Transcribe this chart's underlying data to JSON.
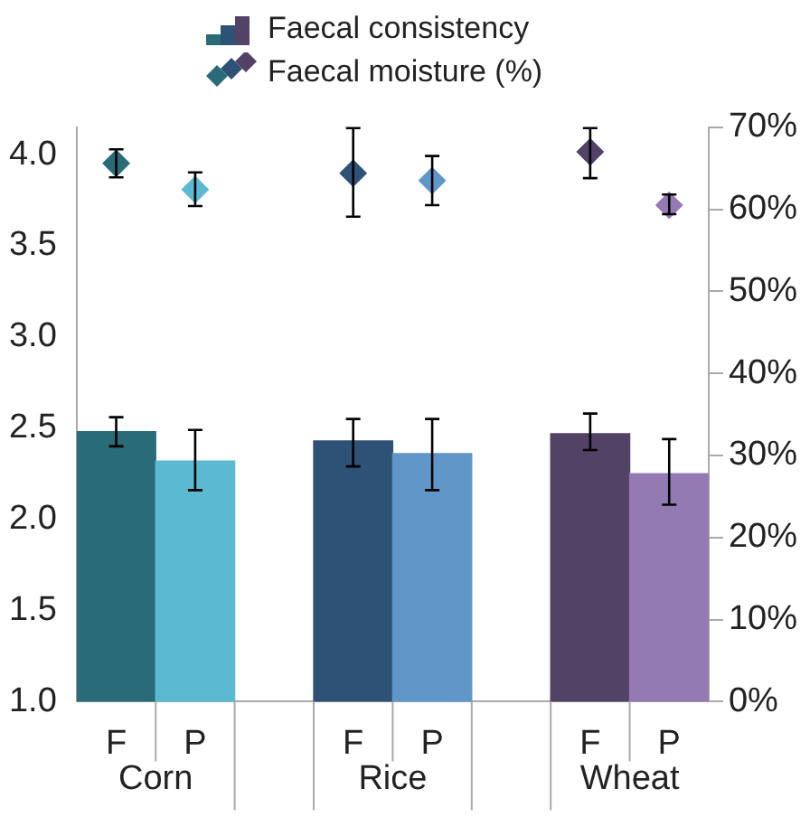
{
  "chart_data": {
    "type": "bar",
    "legend": "top",
    "marker": "diamond",
    "categories": [
      "F",
      "P",
      null,
      "F",
      "P",
      null,
      "F",
      "P"
    ],
    "series": [
      {
        "name": "Faecal consistency",
        "colors": [
          "#2a6b78",
          "#5bb9d1",
          null,
          "#2e5176",
          "#6096c8",
          null,
          "#524266",
          "#937ab3"
        ],
        "values": [
          2.48,
          2.32,
          null,
          2.43,
          2.36,
          null,
          2.47,
          2.25
        ],
        "errors": [
          [
            2.4,
            2.56
          ],
          [
            2.16,
            2.49
          ],
          null,
          [
            2.29,
            2.55
          ],
          [
            2.16,
            2.55
          ],
          null,
          [
            2.38,
            2.58
          ],
          [
            2.08,
            2.44
          ]
        ]
      },
      {
        "name": "Faecal moisture (%)",
        "type": "scatter",
        "axis": "y2",
        "colors": [
          "#2a6b78",
          "#5bb9d1",
          null,
          "#2e5176",
          "#6096c8",
          null,
          "#524266",
          "#937ab3"
        ],
        "values": [
          65.6,
          62.4,
          null,
          64.4,
          63.5,
          null,
          67,
          60.5
        ],
        "errors": [
          [
            63.9,
            67.3
          ],
          [
            60.4,
            64.5
          ],
          null,
          [
            59.1,
            69.9
          ],
          [
            60.5,
            66.5
          ],
          null,
          [
            63.8,
            69.9
          ],
          [
            59.4,
            61.8
          ]
        ]
      }
    ],
    "ylim": [
      1,
      4.15
    ],
    "yticks": [
      {
        "value": 1,
        "label": "1.0"
      },
      {
        "value": 1.5,
        "label": "1.5"
      },
      {
        "value": 2,
        "label": "2.0"
      },
      {
        "value": 2.5,
        "label": "2.5"
      },
      {
        "value": 3,
        "label": "3.0"
      },
      {
        "value": 3.5,
        "label": "3.5"
      },
      {
        "value": 4,
        "label": "4.0"
      }
    ],
    "y2lim": [
      0,
      70
    ],
    "y2ticks": [
      {
        "value": 0,
        "label": "0%"
      },
      {
        "value": 10,
        "label": "10%"
      },
      {
        "value": 20,
        "label": "20%"
      },
      {
        "value": 30,
        "label": "30%"
      },
      {
        "value": 40,
        "label": "40%"
      },
      {
        "value": 50,
        "label": "50%"
      },
      {
        "value": 60,
        "label": "60%"
      },
      {
        "value": 70,
        "label": "70%"
      }
    ],
    "annotations": [
      "Corn",
      "Rice",
      "Wheat"
    ]
  }
}
